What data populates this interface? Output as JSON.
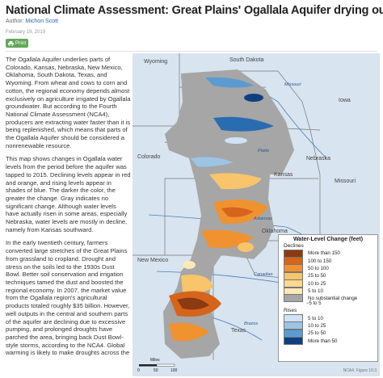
{
  "header": {
    "title": "National Climate Assessment: Great Plains' Ogallala Aquifer drying out",
    "author_prefix": "Author:",
    "author": "Michon Scott",
    "date": "February 19, 2019",
    "print_label": "Print"
  },
  "article": {
    "p1": "The Ogallala Aquifer underlies parts of Colorado, Kansas, Nebraska, New Mexico, Oklahoma, South Dakota, Texas, and Wyoming. From wheat and cows to corn and cotton, the regional economy depends almost exclusively on agriculture irrigated by Ogallala groundwater. But according to the Fourth National Climate Assessment (NCA4), producers are extracting water faster than it is being replenished, which means that parts of the Ogallala Aquifer should be considered a nonrenewable resource.",
    "p2": "This map shows changes in Ogallala water levels from the period before the aquifer was tapped to 2015. Declining levels appear in red and orange, and rising levels appear in shades of blue. The darker the color, the greater the change. Gray indicates no significant change. Although water levels have actually risen in some areas, especially Nebraska, water levels are mostly in decline, namely from Kansas southward.",
    "p3": "In the early twentieth century, farmers converted large stretches of the Great Plains from grassland to cropland. Drought and stress on the soils led to the 1930s Dust Bowl. Better soil conservation and irrigation techniques tamed the dust and boosted the regional economy. In 2007, the market value from the Ogallala region's agricultural products totaled roughly $35 billion. However, well outputs in the central and southern parts of the aquifer are declining due to excessive pumping, and prolonged droughts have parched the area, bringing back Dust Bowl-style storms, according to the NCA4. Global warming is likely to make droughts across the"
  },
  "map": {
    "state_labels": [
      "Wyoming",
      "South Dakota",
      "Nebraska",
      "Iowa",
      "Colorado",
      "Kansas",
      "Missouri",
      "Oklahoma",
      "New Mexico",
      "Texas"
    ],
    "river_labels": [
      "Missouri",
      "Platte",
      "Arkansas",
      "Canadian",
      "Brazos"
    ],
    "scale_label": "Miles",
    "scale_ticks": [
      "0",
      "50",
      "100"
    ],
    "figure_caption": "NCA4, Figure 10.3",
    "colors": {
      "background": "#d8e4ef",
      "aquifer_gray": "#a6a6a6",
      "decline_1": "#fde8b8",
      "decline_2": "#f8c46c",
      "decline_3": "#f0922f",
      "decline_4": "#d5641c",
      "decline_5": "#8b3a12",
      "rise_1": "#cfe3f5",
      "rise_2": "#9cc4e6",
      "rise_3": "#5b9bd2",
      "rise_4": "#2a6cb2",
      "rise_5": "#0f3f7e"
    }
  },
  "legend": {
    "title": "Water-Level Change (feet)",
    "declines_label": "Declines",
    "declines": [
      "More than 150",
      "100 to 150",
      "50 to 100",
      "25 to 50",
      "10 to 25",
      "5 to 10"
    ],
    "no_change_label": "No substantial change",
    "no_change_value": "−5 to 5",
    "rises_label": "Rises",
    "rises": [
      "5 to 10",
      "10 to 25",
      "25 to 50",
      "More than 50"
    ]
  }
}
